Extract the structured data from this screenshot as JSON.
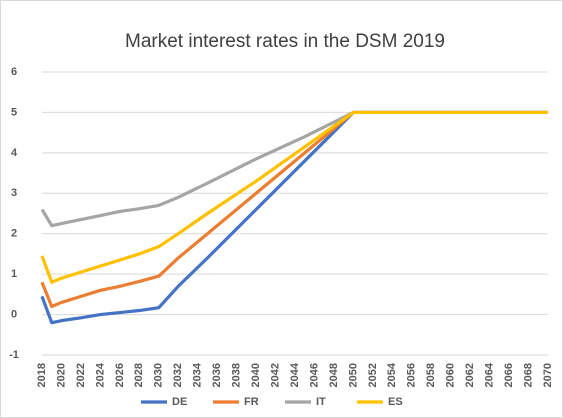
{
  "chart_data": {
    "type": "line",
    "title": "Market interest rates in the DSM 2019",
    "x": [
      2018,
      2019,
      2020,
      2022,
      2024,
      2026,
      2028,
      2030,
      2032,
      2035,
      2040,
      2045,
      2050,
      2070
    ],
    "series": [
      {
        "name": "DE",
        "color": "#4472c4",
        "values": [
          0.45,
          -0.2,
          -0.15,
          -0.08,
          0.0,
          0.05,
          0.1,
          0.17,
          0.7,
          1.4,
          2.6,
          3.8,
          5,
          5
        ]
      },
      {
        "name": "FR",
        "color": "#ed7d31",
        "values": [
          0.8,
          0.2,
          0.3,
          0.45,
          0.6,
          0.7,
          0.82,
          0.95,
          1.4,
          2.0,
          3.0,
          4.0,
          5,
          5
        ]
      },
      {
        "name": "IT",
        "color": "#a5a5a5",
        "values": [
          2.6,
          2.2,
          2.25,
          2.35,
          2.45,
          2.55,
          2.62,
          2.7,
          2.9,
          3.25,
          3.85,
          4.4,
          5,
          5
        ]
      },
      {
        "name": "ES",
        "color": "#ffc000",
        "values": [
          1.45,
          0.8,
          0.9,
          1.05,
          1.2,
          1.35,
          1.5,
          1.68,
          2.0,
          2.5,
          3.3,
          4.15,
          5,
          5
        ]
      }
    ],
    "xlim": [
      2018,
      2070
    ],
    "xticks": [
      2018,
      2020,
      2022,
      2024,
      2026,
      2028,
      2030,
      2032,
      2034,
      2036,
      2038,
      2040,
      2042,
      2044,
      2046,
      2048,
      2050,
      2052,
      2054,
      2056,
      2058,
      2060,
      2062,
      2064,
      2066,
      2068,
      2070
    ],
    "ylim": [
      -1,
      6
    ],
    "yticks": [
      -1,
      0,
      1,
      2,
      3,
      4,
      5,
      6
    ],
    "grid": true,
    "legend": "bottom"
  }
}
